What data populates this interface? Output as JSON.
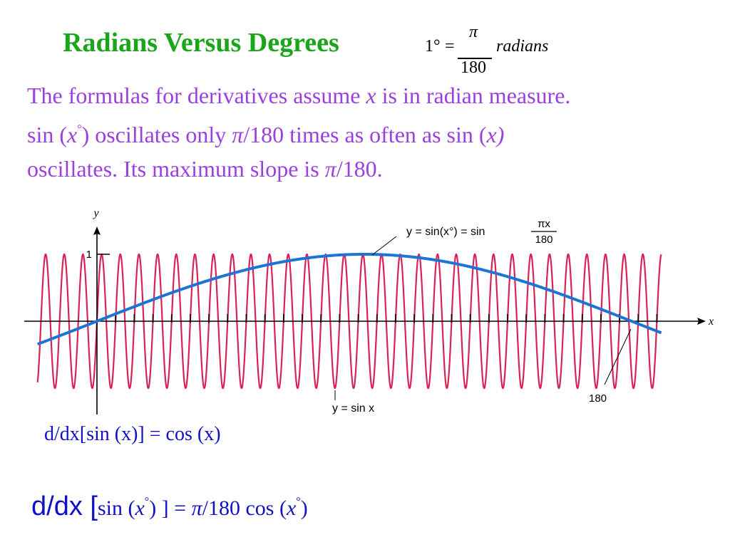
{
  "title": "Radians Versus Degrees",
  "conversion": {
    "lhs": "1°",
    "equals": "=",
    "numerator": "π",
    "denominator": "180",
    "unit": "radians"
  },
  "paragraph": {
    "line1_a": "The formulas for derivatives assume ",
    "line1_x": "x",
    "line1_b": " is in radian measure.",
    "line2_a": "sin (",
    "line2_x": "x",
    "line2_deg": "°",
    "line2_b": ") oscillates only ",
    "line2_pi": "π",
    "line2_c": "/180 times as often as sin (",
    "line2_x2": "x)",
    "line3_a": "oscillates. Its maximum slope is ",
    "line3_pi": "π",
    "line3_b": "/180."
  },
  "figure": {
    "y_axis_label": "y",
    "x_axis_label": "x",
    "y_tick_label": "1",
    "x_tick_label": "180",
    "curve_label_blue_lhs": "y = sin(x°) = sin",
    "curve_label_blue_num": "πx",
    "curve_label_blue_den": "180",
    "curve_label_red": "y = sin x",
    "colors": {
      "fast": "#d92255",
      "slow": "#1e74d4",
      "axis": "#000000"
    }
  },
  "chart_data": {
    "type": "line",
    "title": "",
    "xlabel": "x",
    "ylabel": "y",
    "series": [
      {
        "name": "y = sin(x°) = sin πx/180",
        "function": "sin(pi*x/180)"
      },
      {
        "name": "y = sin x",
        "function": "sin(x)"
      }
    ],
    "xlim": [
      -20,
      190
    ],
    "ylim": [
      -1,
      1
    ],
    "x_tick_labels": [
      "180"
    ],
    "y_tick_labels": [
      "1"
    ]
  },
  "equations": {
    "eq1": "d/dx[sin (x)] = cos (x)",
    "eq2_prefix": "d/dx [",
    "eq2_sin": "sin (",
    "eq2_x": "x",
    "eq2_deg": "°",
    "eq2_mid": ") ] = ",
    "eq2_pi": "π",
    "eq2_tail": "/180 cos (",
    "eq2_x2": "x",
    "eq2_deg2": "°",
    "eq2_end": ")"
  }
}
